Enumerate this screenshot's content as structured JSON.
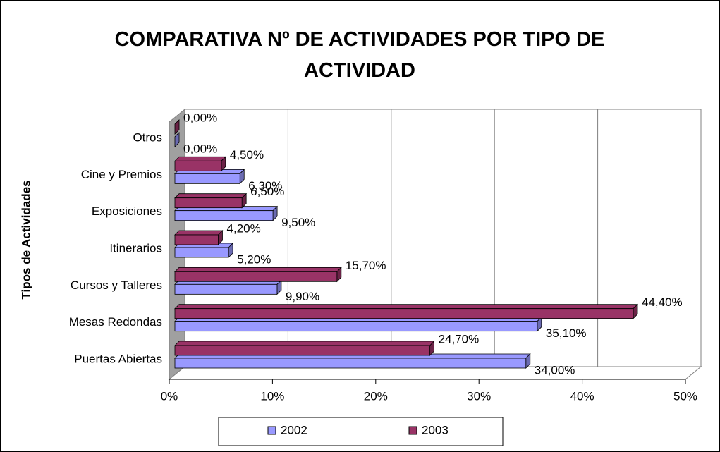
{
  "chart_data": {
    "type": "bar3d-horizontal",
    "title": "COMPARATIVA Nº DE ACTIVIDADES POR TIPO DE ACTIVIDAD",
    "ylabel": "Tipos de Actividades",
    "categories": [
      "Puertas Abiertas",
      "Mesas Redondas",
      "Cursos y Talleres",
      "Itinerarios",
      "Exposiciones",
      "Cine y Premios",
      "Otros"
    ],
    "series": [
      {
        "name": "2002",
        "color": "#9999ff",
        "values": [
          34.0,
          35.1,
          9.9,
          5.2,
          9.5,
          6.3,
          0.0
        ],
        "value_labels": [
          "34,00%",
          "35,10%",
          "9,90%",
          "5,20%",
          "9,50%",
          "6,30%",
          "0,00%"
        ]
      },
      {
        "name": "2003",
        "color": "#993366",
        "values": [
          24.7,
          44.4,
          15.7,
          4.2,
          6.5,
          4.5,
          0.0
        ],
        "value_labels": [
          "24,70%",
          "44,40%",
          "15,70%",
          "4,20%",
          "6,50%",
          "4,50%",
          "0,00%"
        ]
      }
    ],
    "xlim": [
      0,
      50
    ],
    "xticks": [
      {
        "value": 0,
        "label": "0%"
      },
      {
        "value": 10,
        "label": "10%"
      },
      {
        "value": 20,
        "label": "20%"
      },
      {
        "value": 30,
        "label": "30%"
      },
      {
        "value": 40,
        "label": "40%"
      },
      {
        "value": 50,
        "label": "50%"
      }
    ],
    "grid": true,
    "legend": "bottom"
  }
}
